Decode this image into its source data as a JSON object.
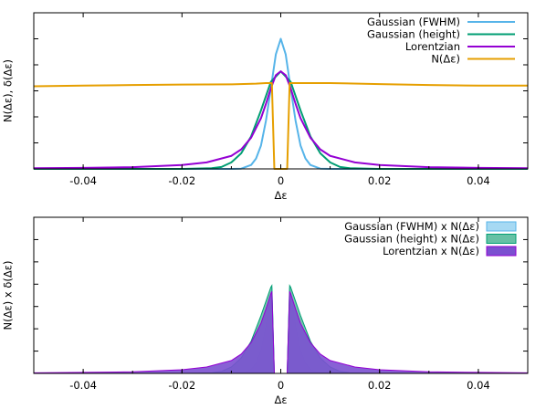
{
  "chart_data": [
    {
      "type": "line",
      "xlabel": "Δε",
      "ylabel": "N(Δε), δ(Δε)",
      "xlim": [
        -0.05,
        0.05
      ],
      "ylim": [
        0,
        1.2
      ],
      "x_ticks": [
        -0.04,
        -0.02,
        0,
        0.02,
        0.04
      ],
      "x_tick_labels": [
        "-0.04",
        "-0.02",
        "0",
        "0.02",
        "0.04"
      ],
      "grid": false,
      "legend_position": "top-right",
      "series": [
        {
          "name": "Gaussian (FWHM)",
          "color": "#56b4e9",
          "x": [
            -0.05,
            -0.01,
            -0.008,
            -0.006,
            -0.005,
            -0.004,
            -0.003,
            -0.002,
            -0.001,
            0,
            0.001,
            0.002,
            0.003,
            0.004,
            0.005,
            0.006,
            0.008,
            0.01,
            0.05
          ],
          "values": [
            0,
            0,
            0.002,
            0.03,
            0.08,
            0.18,
            0.37,
            0.62,
            0.88,
            1.0,
            0.88,
            0.62,
            0.37,
            0.18,
            0.08,
            0.03,
            0.002,
            0,
            0
          ]
        },
        {
          "name": "Gaussian (height)",
          "color": "#009e73",
          "x": [
            -0.05,
            -0.02,
            -0.014,
            -0.012,
            -0.01,
            -0.008,
            -0.006,
            -0.004,
            -0.002,
            0,
            0.002,
            0.004,
            0.006,
            0.008,
            0.01,
            0.012,
            0.014,
            0.02,
            0.05
          ],
          "values": [
            0,
            0,
            0.005,
            0.015,
            0.05,
            0.12,
            0.25,
            0.45,
            0.67,
            0.75,
            0.67,
            0.45,
            0.25,
            0.12,
            0.05,
            0.015,
            0.005,
            0,
            0
          ]
        },
        {
          "name": "Lorentzian",
          "color": "#9400d3",
          "x": [
            -0.05,
            -0.04,
            -0.03,
            -0.02,
            -0.015,
            -0.01,
            -0.008,
            -0.006,
            -0.004,
            -0.003,
            -0.002,
            -0.001,
            0,
            0.001,
            0.002,
            0.003,
            0.004,
            0.006,
            0.008,
            0.01,
            0.015,
            0.02,
            0.03,
            0.04,
            0.05
          ],
          "values": [
            0.005,
            0.008,
            0.013,
            0.03,
            0.05,
            0.1,
            0.15,
            0.24,
            0.39,
            0.5,
            0.62,
            0.72,
            0.75,
            0.72,
            0.62,
            0.5,
            0.39,
            0.24,
            0.15,
            0.1,
            0.05,
            0.03,
            0.013,
            0.008,
            0.005
          ]
        },
        {
          "name": "N(Δε)",
          "color": "#e69f00",
          "x": [
            -0.05,
            -0.04,
            -0.03,
            -0.02,
            -0.01,
            -0.005,
            -0.003,
            -0.0018,
            -0.0013,
            0.0013,
            0.0018,
            0.003,
            0.005,
            0.01,
            0.02,
            0.03,
            0.04,
            0.05
          ],
          "values": [
            0.635,
            0.64,
            0.645,
            0.648,
            0.65,
            0.655,
            0.66,
            0.66,
            0,
            0,
            0.66,
            0.66,
            0.66,
            0.66,
            0.652,
            0.645,
            0.64,
            0.64
          ]
        }
      ]
    },
    {
      "type": "area",
      "xlabel": "Δε",
      "ylabel": "N(Δε) x δ(Δε)",
      "xlim": [
        -0.05,
        0.05
      ],
      "ylim": [
        0,
        0.8
      ],
      "x_ticks": [
        -0.04,
        -0.02,
        0,
        0.02,
        0.04
      ],
      "x_tick_labels": [
        "-0.04",
        "-0.02",
        "0",
        "0.02",
        "0.04"
      ],
      "grid": false,
      "legend_position": "top-right",
      "series": [
        {
          "name": "Gaussian (FWHM) x N(Δε)",
          "color": "#56b4e9",
          "fill": "#a6d9f3",
          "x": [
            -0.05,
            -0.01,
            -0.008,
            -0.006,
            -0.005,
            -0.004,
            -0.003,
            -0.002,
            -0.0018,
            -0.0013,
            0.0013,
            0.0018,
            0.002,
            0.003,
            0.004,
            0.005,
            0.006,
            0.008,
            0.01,
            0.05
          ],
          "values": [
            0,
            0,
            0.001,
            0.02,
            0.053,
            0.119,
            0.244,
            0.409,
            0.44,
            0,
            0,
            0.44,
            0.409,
            0.244,
            0.119,
            0.053,
            0.02,
            0.001,
            0,
            0
          ]
        },
        {
          "name": "Gaussian (height) x N(Δε)",
          "color": "#009e73",
          "fill": "#66c1a5",
          "x": [
            -0.05,
            -0.02,
            -0.014,
            -0.012,
            -0.01,
            -0.008,
            -0.006,
            -0.004,
            -0.002,
            -0.0018,
            -0.0013,
            0.0013,
            0.0018,
            0.002,
            0.004,
            0.006,
            0.008,
            0.01,
            0.012,
            0.014,
            0.02,
            0.05
          ],
          "values": [
            0,
            0,
            0.003,
            0.01,
            0.033,
            0.079,
            0.165,
            0.297,
            0.442,
            0.45,
            0,
            0,
            0.45,
            0.442,
            0.297,
            0.165,
            0.079,
            0.033,
            0.01,
            0.003,
            0,
            0
          ]
        },
        {
          "name": "Lorentzian x N(Δε)",
          "color": "#9400d3",
          "fill": "#7b50d0",
          "x": [
            -0.05,
            -0.04,
            -0.03,
            -0.02,
            -0.015,
            -0.01,
            -0.008,
            -0.006,
            -0.004,
            -0.003,
            -0.002,
            -0.0018,
            -0.0013,
            0.0013,
            0.0018,
            0.002,
            0.003,
            0.004,
            0.006,
            0.008,
            0.01,
            0.015,
            0.02,
            0.03,
            0.04,
            0.05
          ],
          "values": [
            0.003,
            0.005,
            0.008,
            0.019,
            0.033,
            0.066,
            0.099,
            0.158,
            0.257,
            0.33,
            0.409,
            0.42,
            0,
            0,
            0.42,
            0.409,
            0.33,
            0.257,
            0.158,
            0.099,
            0.066,
            0.033,
            0.019,
            0.008,
            0.005,
            0.003
          ]
        }
      ]
    }
  ]
}
